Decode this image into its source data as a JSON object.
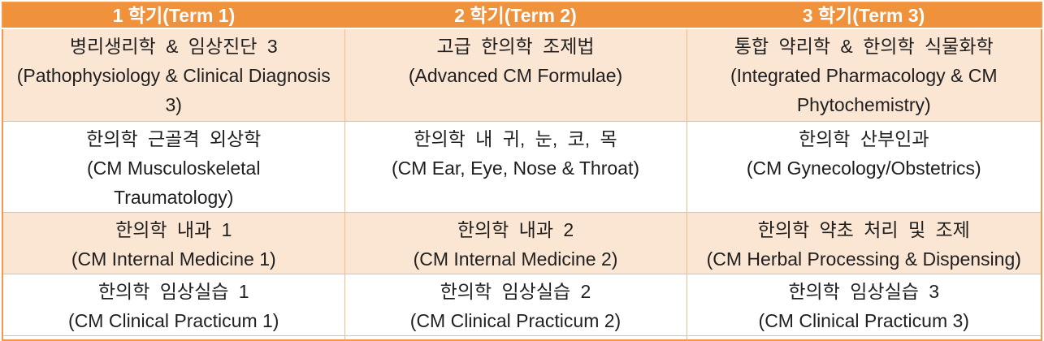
{
  "table": {
    "colors": {
      "header_background": "#F0913C",
      "header_text": "#FFFFFF",
      "alt_row_background": "#FBE5D3",
      "grid_line": "#F5BB88",
      "outer_border": "#F09A50",
      "body_text": "#1F1F1F"
    },
    "header": [
      "1 학기(Term 1)",
      "2 학기(Term 2)",
      "3 학기(Term 3)"
    ],
    "rows": [
      {
        "cells": [
          {
            "ko": "병리생리학 & 임상진단 3",
            "en": "(Pathophysiology & Clinical Diagnosis 3)",
            "lines": [
              "병리생리학 & 임상진단 3",
              "(Pathophysiology & Clinical Diagnosis",
              "3)"
            ]
          },
          {
            "ko": "고급 한의학 조제법",
            "en": "(Advanced CM Formulae)",
            "lines": [
              "고급 한의학 조제법",
              "(Advanced CM Formulae)"
            ]
          },
          {
            "ko": "통합 약리학 & 한의학 식물화학",
            "en": "(Integrated Pharmacology & CM Phytochemistry)",
            "lines": [
              "통합 약리학 & 한의학 식물화학",
              "(Integrated Pharmacology & CM",
              "Phytochemistry)"
            ]
          }
        ]
      },
      {
        "cells": [
          {
            "ko": "한의학 근골격 외상학",
            "en": "(CM Musculoskeletal Traumatology)",
            "lines": [
              "한의학 근골격 외상학",
              "(CM Musculoskeletal",
              "Traumatology)"
            ]
          },
          {
            "ko": "한의학 내 귀, 눈, 코, 목",
            "en": "(CM Ear, Eye, Nose & Throat)",
            "lines": [
              "한의학 내 귀, 눈, 코, 목",
              "(CM Ear, Eye, Nose & Throat)"
            ]
          },
          {
            "ko": "한의학 산부인과",
            "en": "(CM Gynecology/Obstetrics)",
            "lines": [
              "한의학 산부인과",
              "(CM Gynecology/Obstetrics)"
            ]
          }
        ]
      },
      {
        "cells": [
          {
            "ko": "한의학 내과 1",
            "en": "(CM Internal Medicine 1)",
            "lines": [
              "한의학 내과 1",
              "(CM Internal Medicine 1)"
            ]
          },
          {
            "ko": "한의학 내과 2",
            "en": "(CM Internal Medicine 2)",
            "lines": [
              "한의학 내과 2",
              "(CM Internal Medicine 2)"
            ]
          },
          {
            "ko": "한의학 약초 처리 및 조제",
            "en": "(CM Herbal Processing & Dispensing)",
            "lines": [
              "한의학 약초 처리 및 조제",
              "(CM Herbal Processing & Dispensing)"
            ]
          }
        ]
      },
      {
        "cells": [
          {
            "ko": "한의학 임상실습 1",
            "en": "(CM Clinical Practicum 1)",
            "lines": [
              "한의학 임상실습 1",
              "(CM Clinical Practicum 1)"
            ]
          },
          {
            "ko": "한의학 임상실습 2",
            "en": "(CM Clinical Practicum 2)",
            "lines": [
              "한의학 임상실습 2",
              "(CM Clinical Practicum 2)"
            ]
          },
          {
            "ko": "한의학 임상실습 3",
            "en": "(CM Clinical Practicum 3)",
            "lines": [
              "한의학 임상실습 3",
              "(CM Clinical Practicum 3)"
            ]
          }
        ]
      }
    ]
  }
}
